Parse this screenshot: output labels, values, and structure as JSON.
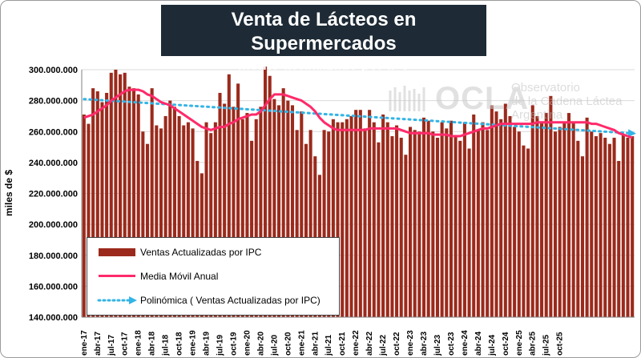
{
  "title": {
    "line1": "Venta de Lácteos en Supermercados",
    "line2": "- monto actualizado por IPC -"
  },
  "watermark": {
    "brand": "OCLA",
    "line1": "Observatorio",
    "line2": "de la Cadena Láctea",
    "line3": "Argentina"
  },
  "legend": {
    "bars": "Ventas Actualizadas por IPC",
    "moving_avg": "Media Móvil Anual",
    "poly": "Polinómica ( Ventas Actualizadas por IPC)"
  },
  "colors": {
    "bars": "#9b2a1c",
    "moving_avg": "#ff2a6a",
    "poly": "#33b4e6",
    "title_bg": "#1e2b36"
  },
  "chart_data": {
    "type": "bar",
    "title": "Venta de Lácteos en Supermercados",
    "subtitle": "- monto actualizado por IPC -",
    "ylabel": "miles de $",
    "xlabel": "",
    "ylim": [
      140000000,
      300000000
    ],
    "yticks": [
      "140.000.000",
      "160.000.000",
      "180.000.000",
      "200.000.000",
      "220.000.000",
      "240.000.000",
      "260.000.000",
      "280.000.000",
      "300.000.000"
    ],
    "x_tick_labels": [
      "ene-17",
      "abr-17",
      "jul-17",
      "oct-17",
      "ene-18",
      "abr-18",
      "jul-18",
      "oct-18",
      "ene-19",
      "abr-19",
      "jul-19",
      "oct-19",
      "ene-20",
      "abr-20",
      "jul-20",
      "oct-20",
      "ene-21",
      "abr-21",
      "jul-21",
      "oct-21",
      "ene-22",
      "abr-22",
      "jul-22",
      "oct-22",
      "ene-23",
      "abr-23",
      "jul-23",
      "oct-23",
      "ene-24",
      "abr-24",
      "jul-24",
      "oct-24",
      "ene-25",
      "abr-25",
      "jul-25",
      "oct-25"
    ],
    "grid": true,
    "legend_position": "bottom-left",
    "series": [
      {
        "name": "Ventas Actualizadas por IPC",
        "type": "bar",
        "values": [
          271000000,
          265000000,
          288000000,
          286000000,
          279000000,
          285000000,
          298000000,
          300000000,
          297000000,
          298000000,
          289000000,
          288000000,
          284000000,
          260000000,
          252000000,
          288000000,
          264000000,
          262000000,
          270000000,
          280000000,
          276000000,
          270000000,
          264000000,
          266000000,
          262000000,
          241000000,
          233000000,
          266000000,
          259000000,
          266000000,
          285000000,
          278000000,
          297000000,
          276000000,
          291000000,
          268000000,
          272000000,
          254000000,
          268000000,
          276000000,
          302000000,
          296000000,
          281000000,
          277000000,
          288000000,
          280000000,
          277000000,
          261000000,
          273000000,
          252000000,
          261000000,
          244000000,
          232000000,
          261000000,
          260000000,
          268000000,
          266000000,
          266000000,
          268000000,
          270000000,
          274000000,
          274000000,
          262000000,
          274000000,
          266000000,
          253000000,
          271000000,
          266000000,
          257000000,
          264000000,
          256000000,
          245000000,
          263000000,
          261000000,
          260000000,
          269000000,
          267000000,
          260000000,
          256000000,
          266000000,
          262000000,
          267000000,
          257000000,
          254000000,
          266000000,
          249000000,
          271000000,
          261000000,
          266000000,
          261000000,
          277000000,
          273000000,
          268000000,
          278000000,
          270000000,
          263000000,
          260000000,
          251000000,
          249000000,
          277000000,
          270000000,
          266000000,
          272000000,
          283000000,
          260000000,
          263000000,
          266000000,
          272000000,
          266000000,
          254000000,
          244000000,
          269000000,
          260000000,
          257000000,
          259000000,
          256000000,
          252000000,
          256000000,
          241000000,
          258000000,
          256000000,
          257000000
        ]
      },
      {
        "name": "Media Móvil Anual",
        "type": "line",
        "values": [
          269000000,
          270000000,
          271000000,
          273000000,
          275000000,
          277000000,
          280000000,
          282000000,
          284000000,
          286000000,
          287000000,
          287000000,
          287000000,
          286000000,
          284000000,
          283000000,
          281000000,
          279000000,
          278000000,
          277000000,
          275000000,
          273000000,
          271000000,
          269000000,
          267000000,
          265000000,
          263000000,
          262000000,
          261000000,
          262000000,
          263000000,
          263000000,
          265000000,
          266000000,
          268000000,
          269000000,
          270000000,
          271000000,
          271000000,
          273000000,
          277000000,
          281000000,
          284000000,
          284000000,
          284000000,
          283000000,
          282000000,
          281000000,
          280000000,
          278000000,
          276000000,
          273000000,
          269000000,
          266000000,
          264000000,
          262000000,
          261000000,
          261000000,
          261000000,
          261000000,
          261000000,
          261000000,
          261000000,
          262000000,
          262000000,
          262000000,
          262000000,
          262000000,
          262000000,
          262000000,
          261000000,
          260000000,
          259000000,
          259000000,
          259000000,
          259000000,
          259000000,
          258000000,
          258000000,
          258000000,
          258000000,
          257000000,
          257000000,
          257000000,
          258000000,
          259000000,
          260000000,
          261000000,
          262000000,
          262000000,
          263000000,
          264000000,
          265000000,
          265000000,
          265000000,
          265000000,
          265000000,
          265000000,
          265000000,
          265000000,
          266000000,
          266000000,
          266000000,
          266000000,
          266000000,
          266000000,
          266000000,
          266000000,
          266000000,
          266000000,
          266000000,
          266000000,
          265000000,
          265000000,
          264000000,
          263000000,
          262000000,
          261000000,
          259000000,
          258000000,
          257000000,
          256000000
        ]
      },
      {
        "name": "Polinómica ( Ventas Actualizadas por IPC)",
        "type": "line-trend",
        "start": 281000000,
        "end": 259000000
      }
    ]
  }
}
